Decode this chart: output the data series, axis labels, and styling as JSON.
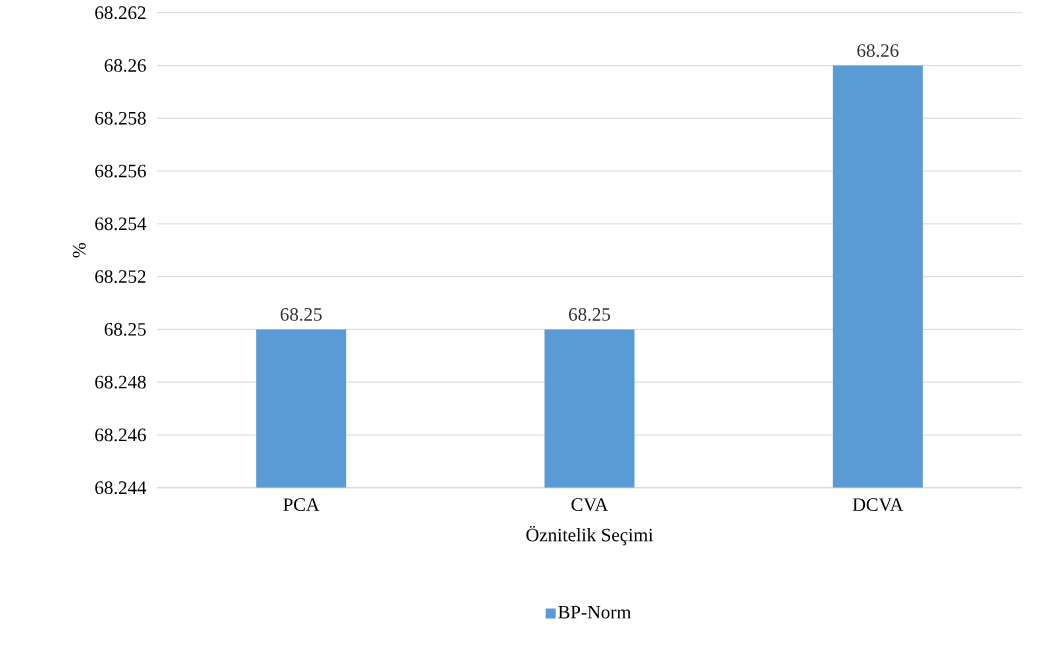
{
  "chart_data": {
    "type": "bar",
    "xlabel": "Öznitelik Seçimi",
    "ylabel": "%",
    "categories": [
      "PCA",
      "CVA",
      "DCVA"
    ],
    "series": [
      {
        "name": "BP-Norm",
        "color": "#5b9bd5",
        "values": [
          68.25,
          68.25,
          68.26
        ]
      }
    ],
    "ylim": [
      68.244,
      68.262
    ],
    "yticks": [
      68.244,
      68.246,
      68.248,
      68.25,
      68.252,
      68.254,
      68.256,
      68.258,
      68.26,
      68.262
    ],
    "grid": "y",
    "legend": "bottom",
    "data_labels": true
  }
}
